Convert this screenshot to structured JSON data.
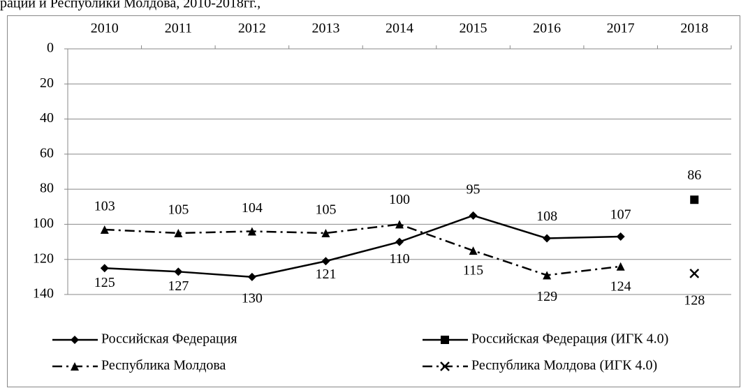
{
  "chart_data": {
    "type": "line",
    "title": "рации и Республики Молдова, 2010-2018гг.,",
    "categories": [
      "2010",
      "2011",
      "2012",
      "2013",
      "2014",
      "2015",
      "2016",
      "2017",
      "2018"
    ],
    "ylim": [
      0,
      140
    ],
    "yticks": [
      0,
      20,
      40,
      60,
      80,
      100,
      120,
      140
    ],
    "y_inverted": true,
    "grid": true,
    "series": [
      {
        "name": "Российская Федерация",
        "color": "#000000",
        "linestyle": "solid",
        "marker": "diamond",
        "values": [
          125,
          127,
          130,
          121,
          110,
          95,
          108,
          107,
          null
        ]
      },
      {
        "name": "Российская Федерация  (ИГК 4.0)",
        "color": "#000000",
        "linestyle": "solid",
        "marker": "square",
        "values": [
          null,
          null,
          null,
          null,
          null,
          null,
          null,
          null,
          86
        ]
      },
      {
        "name": "Республика Молдова",
        "color": "#000000",
        "linestyle": "dashdot",
        "marker": "triangle",
        "values": [
          103,
          105,
          104,
          105,
          100,
          115,
          129,
          124,
          null
        ]
      },
      {
        "name": "Республика Молдова (ИГК 4.0)",
        "color": "#000000",
        "linestyle": "dashdot",
        "marker": "x",
        "values": [
          null,
          null,
          null,
          null,
          null,
          null,
          null,
          null,
          128
        ]
      }
    ]
  }
}
